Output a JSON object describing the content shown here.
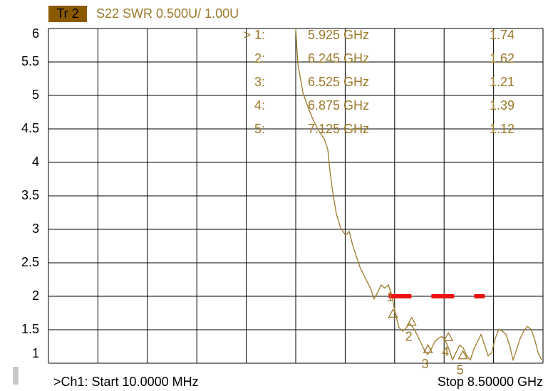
{
  "chart_data": {
    "type": "line",
    "trace_label": "Tr 2",
    "title": "S22 SWR 0.500U/ 1.00U",
    "start_label": ">Ch1: Start 10.0000 MHz",
    "stop_label": "Stop 8.50000 GHz",
    "xlim": [
      0.01,
      8.5
    ],
    "ylim": [
      1,
      6
    ],
    "yticks": [
      1,
      1.5,
      2,
      2.5,
      3,
      3.5,
      4,
      4.5,
      5,
      5.5,
      6
    ],
    "grid": true,
    "series": [
      {
        "color": "#9c7a28",
        "x": [
          4.255,
          4.292,
          4.378,
          4.463,
          4.561,
          4.659,
          4.744,
          4.805,
          4.842,
          4.891,
          4.952,
          5.026,
          5.111,
          5.172,
          5.233,
          5.295,
          5.356,
          5.417,
          5.478,
          5.539,
          5.6,
          5.662,
          5.723,
          5.784,
          5.845,
          5.906,
          5.967,
          6.029,
          6.09,
          6.151,
          6.212,
          6.273,
          6.335,
          6.396,
          6.457,
          6.518,
          6.579,
          6.64,
          6.701,
          6.763,
          6.824,
          6.885,
          6.946,
          7.007,
          7.069,
          7.13,
          7.191,
          7.252,
          7.313,
          7.374,
          7.436,
          7.497,
          7.558,
          7.619,
          7.68,
          7.741,
          7.803,
          7.864,
          7.925,
          7.986,
          8.047,
          8.108,
          8.17,
          8.231,
          8.292,
          8.353,
          8.414,
          8.475
        ],
        "values": [
          6.0,
          5.47,
          5.04,
          4.83,
          4.62,
          4.46,
          4.35,
          4.19,
          3.87,
          3.55,
          3.23,
          3.02,
          2.91,
          2.97,
          2.76,
          2.6,
          2.44,
          2.33,
          2.22,
          2.12,
          1.96,
          2.06,
          2.17,
          2.12,
          2.17,
          2.01,
          1.74,
          1.53,
          1.48,
          1.53,
          1.59,
          1.53,
          1.43,
          1.32,
          1.21,
          1.13,
          1.21,
          1.32,
          1.37,
          1.4,
          1.34,
          1.21,
          1.05,
          1.16,
          1.27,
          1.23,
          1.11,
          1.05,
          1.21,
          1.32,
          1.43,
          1.27,
          1.11,
          1.16,
          1.37,
          1.51,
          1.48,
          1.43,
          1.27,
          1.05,
          1.21,
          1.37,
          1.48,
          1.55,
          1.51,
          1.37,
          1.16,
          1.05
        ]
      }
    ],
    "markers": [
      {
        "name": "> 1:",
        "id": "1",
        "x": 5.925,
        "x_label": "5.925 GHz",
        "value": 1.74
      },
      {
        "name": "2:",
        "id": "2",
        "x": 6.245,
        "x_label": "6.245 GHz",
        "value": 1.62
      },
      {
        "name": "3:",
        "id": "3",
        "x": 6.525,
        "x_label": "6.525 GHz",
        "value": 1.21
      },
      {
        "name": "4:",
        "id": "4",
        "x": 6.875,
        "x_label": "6.875 GHz",
        "value": 1.39
      },
      {
        "name": "5:",
        "id": "5",
        "x": 7.125,
        "x_label": "7.125 GHz",
        "value": 1.12
      }
    ],
    "limit_line": {
      "value": 2,
      "x": [
        5.85,
        7.5
      ],
      "color": "#ee1111"
    }
  }
}
